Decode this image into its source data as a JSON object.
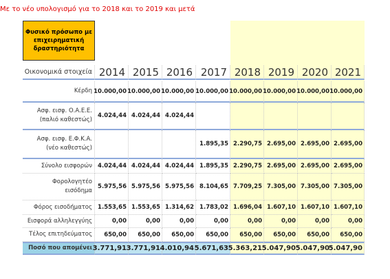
{
  "note": {
    "title": "Με το νέο υπολογισμό για το 2018 και το 2019 και μετά"
  },
  "box": {
    "lines": [
      "Φυσικό πρόσωπο με",
      "επιχειρηματική",
      "δραστηριότητα"
    ]
  },
  "table": {
    "header": {
      "label": "Οικονομικά στοιχεία",
      "years": [
        "2014",
        "2015",
        "2016",
        "2017",
        "2018",
        "2019",
        "2020",
        "2021"
      ]
    },
    "rows": [
      {
        "label": [
          "Κέρδη"
        ],
        "values": [
          "10.000,00",
          "10.000,00",
          "10.000,00",
          "10.000,00",
          "10.000,00",
          "10.000,00",
          "10.000,00",
          "10.000,00"
        ]
      },
      {
        "label": [
          "Ασφ. εισφ. Ο.Α.Ε.Ε.",
          "(παλιό καθεστώς)"
        ],
        "values": [
          "4.024,44",
          "4.024,44",
          "4.024,44",
          null,
          null,
          null,
          null,
          null
        ]
      },
      {
        "label": [
          "Ασφ. εισφ. Ε.Φ.Κ.Α.",
          "(νέο καθεστώς)"
        ],
        "values": [
          null,
          null,
          null,
          "1.895,35",
          "2.290,75",
          "2.695,00",
          "2.695,00",
          "2.695,00"
        ]
      },
      {
        "label": [
          "Σύνολο εισφορών"
        ],
        "values": [
          "4.024,44",
          "4.024,44",
          "4.024,44",
          "1.895,35",
          "2.290,75",
          "2.695,00",
          "2.695,00",
          "2.695,00"
        ]
      },
      {
        "label": [
          "Φορολογητέο",
          "εισόδημα"
        ],
        "values": [
          "5.975,56",
          "5.975,56",
          "5.975,56",
          "8.104,65",
          "7.709,25",
          "7.305,00",
          "7.305,00",
          "7.305,00"
        ]
      },
      {
        "label": [
          "Φόρος εισοδήματος"
        ],
        "values": [
          "1.553,65",
          "1.553,65",
          "1.314,62",
          "1.783,02",
          "1.696,04",
          "1.607,10",
          "1.607,10",
          "1.607,10"
        ]
      },
      {
        "label": [
          "Εισφορά αλληλεγγύης"
        ],
        "values": [
          "0,00",
          "0,00",
          "0,00",
          "0,00",
          "0,00",
          "0,00",
          "0,00",
          "0,00"
        ]
      },
      {
        "label": [
          "Τέλος επιτηδεύματος"
        ],
        "values": [
          "650,00",
          "650,00",
          "650,00",
          "650,00",
          "650,00",
          "650,00",
          "650,00",
          "650,00"
        ]
      },
      {
        "label": [
          "Ποσό που απομένει"
        ],
        "values": [
          "3.771,91",
          "3.771,91",
          "4.010,94",
          "5.671,63",
          "5.363,21",
          "5.047,90",
          "5.047,90",
          "5.047,90"
        ]
      }
    ]
  }
}
